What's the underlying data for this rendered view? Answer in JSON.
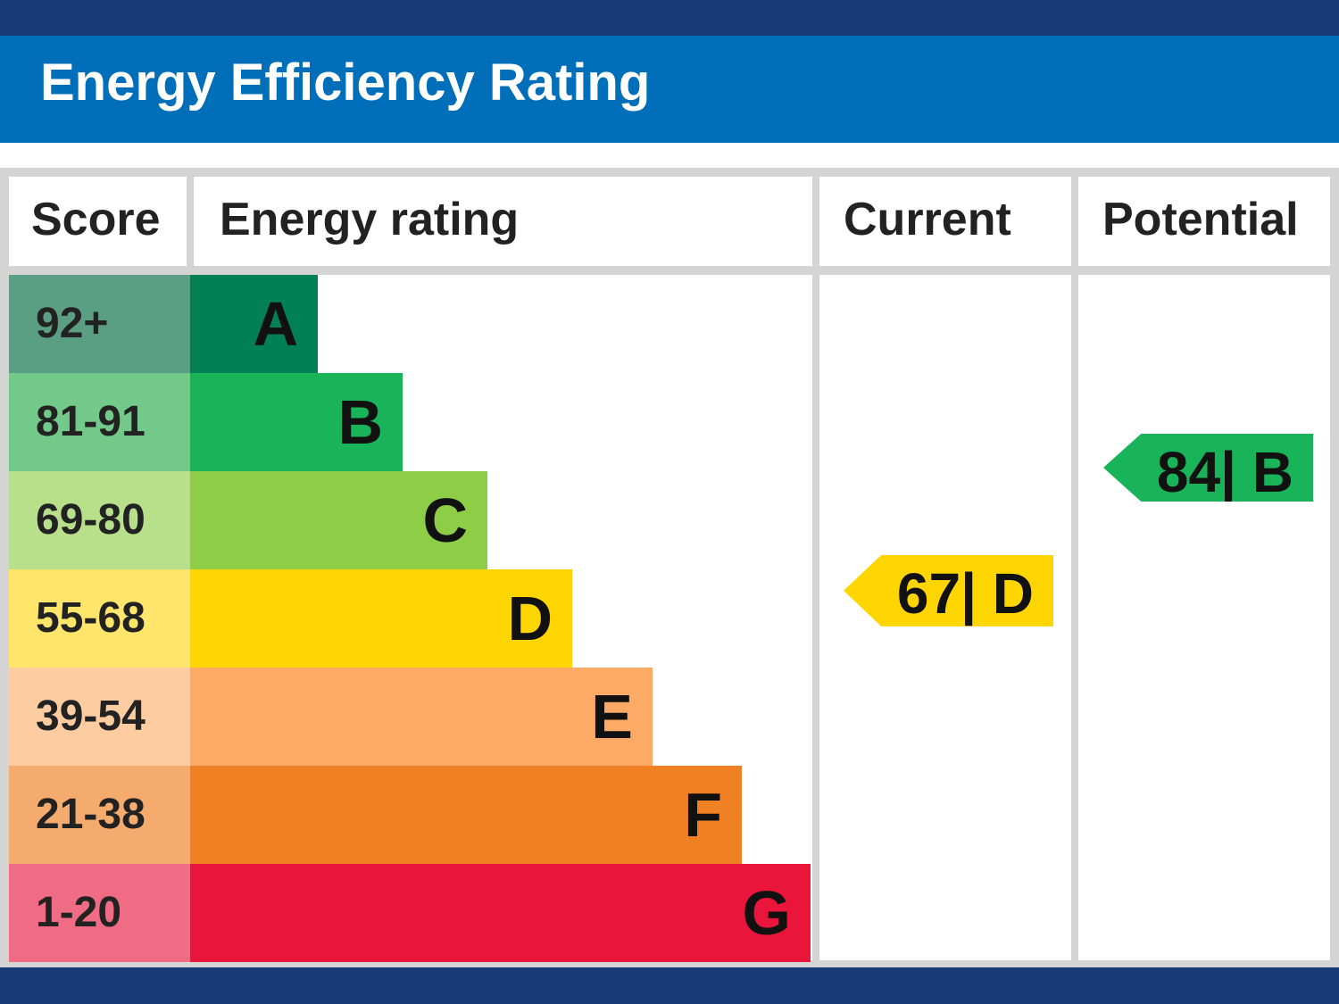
{
  "title": "Energy Efficiency Rating",
  "headers": {
    "score": "Score",
    "energy_rating": "Energy rating",
    "current": "Current",
    "potential": "Potential"
  },
  "chart_data": {
    "type": "bar",
    "title": "Energy Efficiency Rating",
    "categories": [
      "A",
      "B",
      "C",
      "D",
      "E",
      "F",
      "G"
    ],
    "bands": [
      {
        "score": "92+",
        "letter": "A",
        "color": "#008054",
        "score_color": "#5a9e83"
      },
      {
        "score": "81-91",
        "letter": "B",
        "color": "#19b459",
        "score_color": "#73c98a"
      },
      {
        "score": "69-80",
        "letter": "C",
        "color": "#8dce46",
        "score_color": "#b8e08a"
      },
      {
        "score": "55-68",
        "letter": "D",
        "color": "#ffd500",
        "score_color": "#ffe569"
      },
      {
        "score": "39-54",
        "letter": "E",
        "color": "#fcaa65",
        "score_color": "#fdcca1"
      },
      {
        "score": "21-38",
        "letter": "F",
        "color": "#ef8023",
        "score_color": "#f5ab6d"
      },
      {
        "score": "1-20",
        "letter": "G",
        "color": "#e9153b",
        "score_color": "#ef6c84"
      }
    ],
    "current": {
      "value": 67,
      "letter": "D",
      "label": "67| D",
      "color": "#ffd500"
    },
    "potential": {
      "value": 84,
      "letter": "B",
      "label": "84| B",
      "color": "#19b459"
    }
  }
}
